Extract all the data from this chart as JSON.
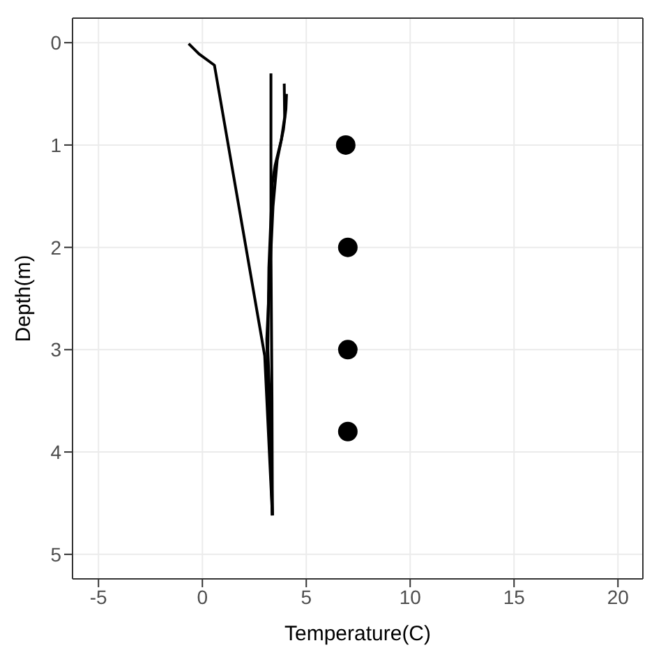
{
  "chart_data": {
    "type": "line",
    "xlabel": "Temperature(C)",
    "ylabel": "Depth(m)",
    "xlim": [
      -6.25,
      21.2
    ],
    "xticks": [
      -5,
      0,
      5,
      10,
      15,
      20
    ],
    "ylim": [
      5.24,
      -0.24
    ],
    "yticks": [
      0,
      1,
      2,
      3,
      4,
      5
    ],
    "grid": true,
    "legend": false,
    "series": [
      {
        "marker": "none",
        "color": "#000000",
        "x": [
          -0.66,
          -0.16,
          0.58,
          3.0,
          3.37
        ],
        "values": [
          0.01,
          0.11,
          0.22,
          3.06,
          4.62
        ]
      },
      {
        "marker": "none",
        "color": "#000000",
        "x": [
          3.3,
          3.3,
          3.35,
          3.37
        ],
        "values": [
          0.3,
          2.0,
          3.5,
          4.62
        ]
      },
      {
        "marker": "none",
        "color": "#000000",
        "x": [
          3.94,
          3.96,
          3.8,
          3.5,
          3.37,
          3.2,
          3.15,
          3.3,
          3.37
        ],
        "values": [
          0.4,
          0.73,
          0.95,
          1.2,
          1.37,
          2.2,
          3.0,
          3.8,
          4.62
        ]
      },
      {
        "marker": "none",
        "color": "#000000",
        "x": [
          4.05,
          4.02,
          3.9,
          3.6,
          3.4,
          3.1,
          3.25,
          3.37
        ],
        "values": [
          0.5,
          0.65,
          0.85,
          1.15,
          1.6,
          2.9,
          3.9,
          4.62
        ]
      },
      {
        "type": "scatter",
        "marker": "circle",
        "color": "#000000",
        "x": [
          6.9,
          7.0,
          7.0,
          7.0
        ],
        "values": [
          1.0,
          2.0,
          3.0,
          3.8
        ]
      }
    ]
  }
}
